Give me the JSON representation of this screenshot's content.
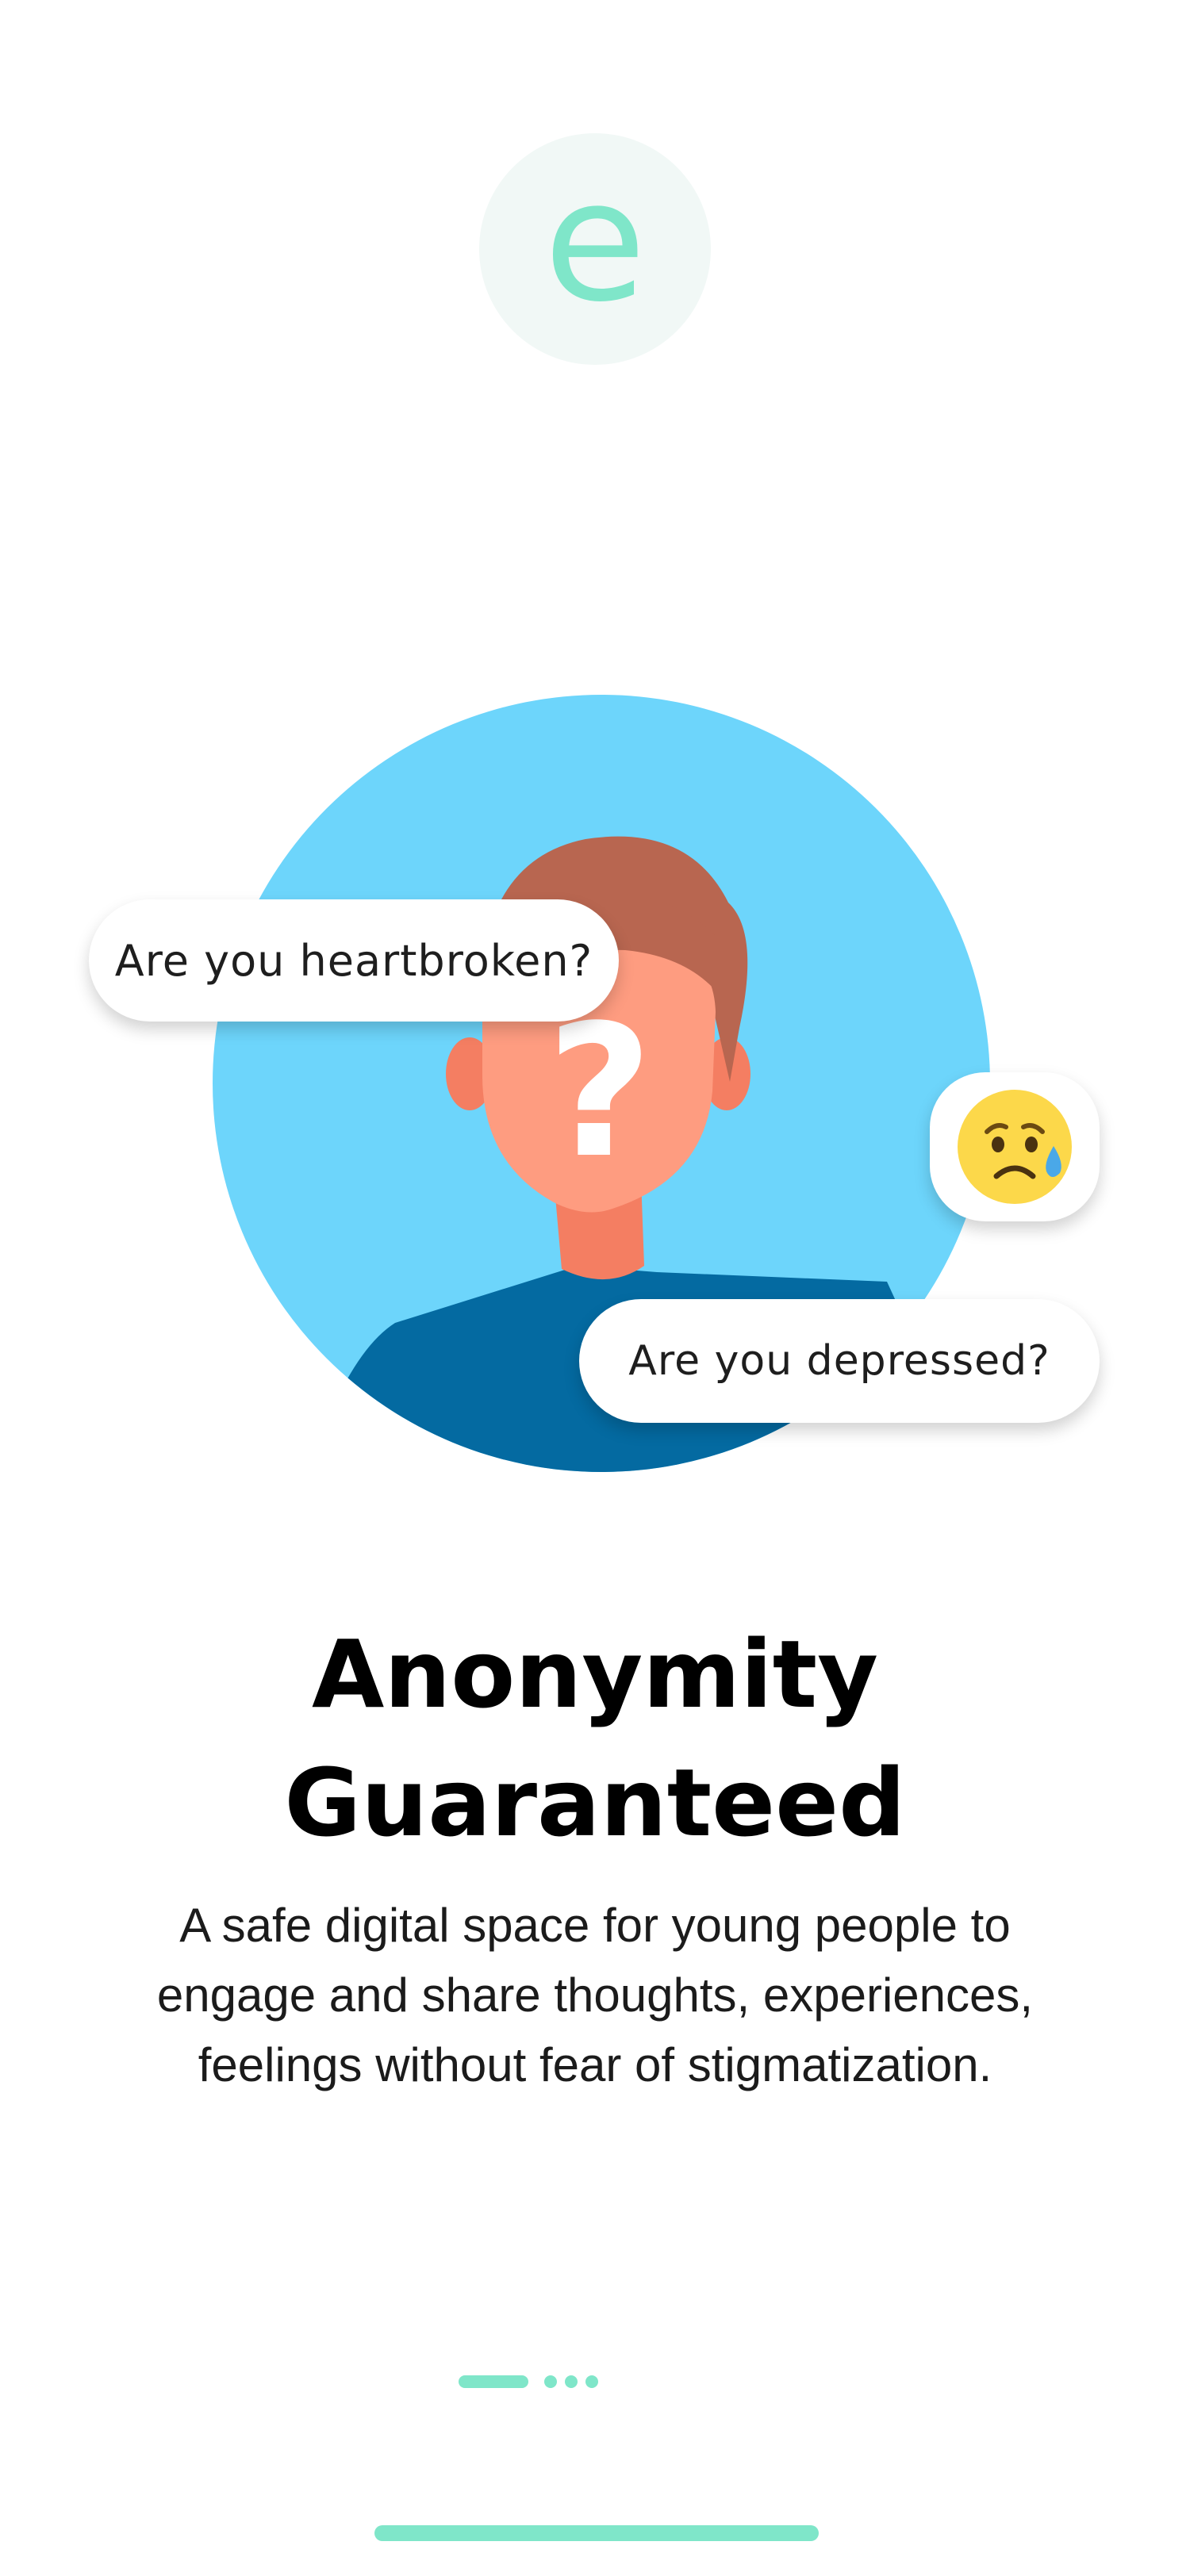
{
  "logo": {
    "letter": "e",
    "color": "#7fe6c9",
    "background": "#f1f8f6"
  },
  "illustration": {
    "icon": "anonymous-person-illustration",
    "question_mark": "?",
    "bubbles": {
      "heartbroken": "Are you heartbroken?",
      "depressed": "Are you depressed?",
      "emoji_icon": "sad-sweat-face-emoji"
    },
    "colors": {
      "circle": "#6dd5fb",
      "hair": "#b86650",
      "skin": "#fe9c80",
      "neck": "#f47e62",
      "shirt": "#046aa1"
    }
  },
  "headline": {
    "line1": "Anonymity",
    "line2": "Guaranteed"
  },
  "description": "A safe digital space for young people to engage and share thoughts, experiences, feelings without fear of stigmatization.",
  "pager": {
    "total_pages": 4,
    "current_page": 1,
    "accent": "#7fe6c9"
  }
}
